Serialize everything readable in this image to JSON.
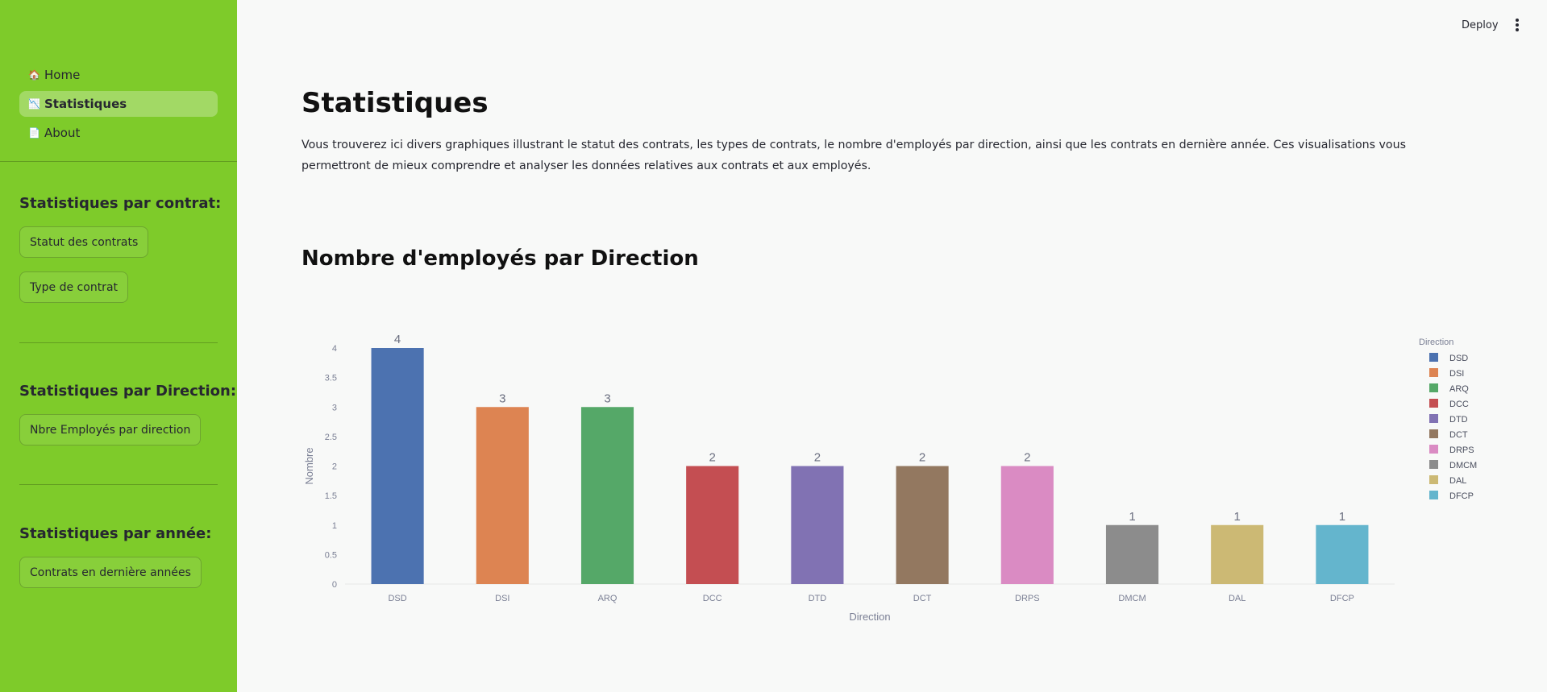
{
  "sidebar": {
    "nav": [
      {
        "label": "Home",
        "icon": "🏠"
      },
      {
        "label": "Statistiques",
        "icon": "📉"
      },
      {
        "label": "About",
        "icon": "📄"
      }
    ],
    "sections": [
      {
        "heading": "Statistiques par contrat:",
        "buttons": [
          "Statut des contrats",
          "Type de contrat"
        ]
      },
      {
        "heading": "Statistiques par Direction:",
        "buttons": [
          "Nbre Employés par direction"
        ]
      },
      {
        "heading": "Statistiques par année:",
        "buttons": [
          "Contrats en dernière années"
        ]
      }
    ]
  },
  "header": {
    "deploy_label": "Deploy"
  },
  "main": {
    "title": "Statistiques",
    "intro": "Vous trouverez ici divers graphiques illustrant le statut des contrats, les types de contrats, le nombre d'employés par direction, ainsi que les contrats en dernière année. Ces visualisations vous permettront de mieux comprendre et analyser les données relatives aux contrats et aux employés.",
    "section_title": "Nombre d'employés par Direction"
  },
  "colors": {
    "sidebar": "#7ecb2a",
    "page_bg": "#f8f9f8",
    "axis_text": "#7a7f94"
  },
  "chart_data": {
    "type": "bar",
    "categories": [
      "DSD",
      "DSI",
      "ARQ",
      "DCC",
      "DTD",
      "DCT",
      "DRPS",
      "DMCM",
      "DAL",
      "DFCP"
    ],
    "values": [
      4,
      3,
      3,
      2,
      2,
      2,
      2,
      1,
      1,
      1
    ],
    "colors": [
      "#4c72b0",
      "#dd8452",
      "#55a868",
      "#c44e52",
      "#8172b3",
      "#937860",
      "#da8bc3",
      "#8c8c8c",
      "#ccb974",
      "#64b5cd"
    ],
    "xlabel": "Direction",
    "ylabel": "Nombre",
    "ylim": [
      0,
      4
    ],
    "yticks": [
      "0",
      "0.5",
      "1",
      "1.5",
      "2",
      "2.5",
      "3",
      "3.5",
      "4"
    ],
    "legend_title": "Direction",
    "legend_position": "right",
    "data_labels": true
  }
}
